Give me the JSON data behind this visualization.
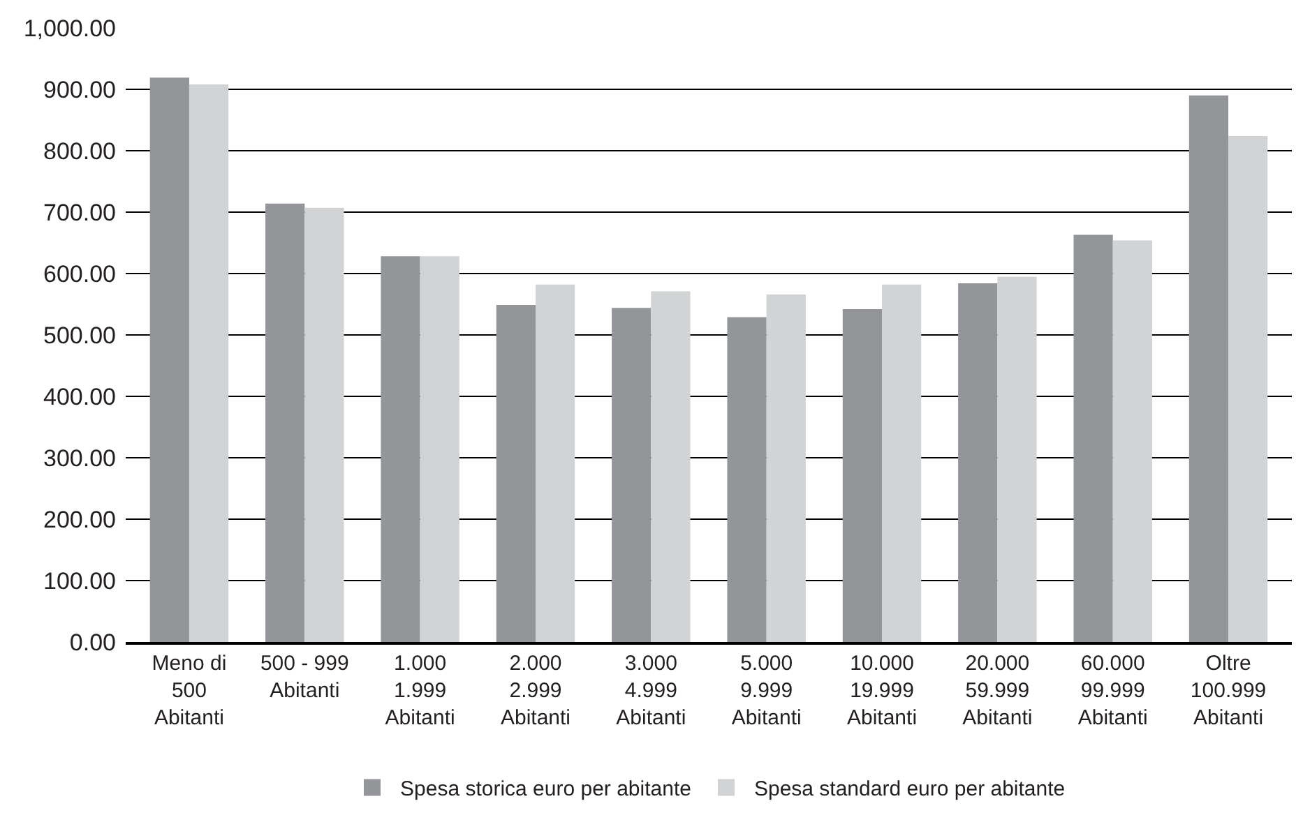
{
  "chart_data": {
    "type": "bar",
    "categories": [
      "Meno di\n500\nAbitanti",
      "500 - 999\nAbitanti",
      "1.000\n1.999\nAbitanti",
      "2.000\n2.999\nAbitanti",
      "3.000\n4.999\nAbitanti",
      "5.000\n9.999\nAbitanti",
      "10.000\n19.999\nAbitanti",
      "20.000\n59.999\nAbitanti",
      "60.000\n99.999\nAbitanti",
      "Oltre\n100.999\nAbitanti"
    ],
    "series": [
      {
        "name": "Spesa storica euro per abitante",
        "color": "#939598",
        "values": [
          919,
          714,
          628,
          549,
          544,
          529,
          542,
          584,
          663,
          890
        ]
      },
      {
        "name": "Spesa standard euro per abitante",
        "color": "#d1d3d4",
        "values": [
          908,
          707,
          628,
          582,
          571,
          566,
          582,
          595,
          654,
          824
        ]
      }
    ],
    "ylim": [
      0,
      1000
    ],
    "yticks": [
      {
        "value": 0,
        "label": "0.00"
      },
      {
        "value": 100,
        "label": "100.00"
      },
      {
        "value": 200,
        "label": "200.00"
      },
      {
        "value": 300,
        "label": "300.00"
      },
      {
        "value": 400,
        "label": "400.00"
      },
      {
        "value": 500,
        "label": "500.00"
      },
      {
        "value": 600,
        "label": "600.00"
      },
      {
        "value": 700,
        "label": "700.00"
      },
      {
        "value": 800,
        "label": "800.00"
      },
      {
        "value": 900,
        "label": "900.00"
      },
      {
        "value": 1000,
        "label": "1,000.00"
      }
    ],
    "grid": "y",
    "legend": "bottom"
  }
}
